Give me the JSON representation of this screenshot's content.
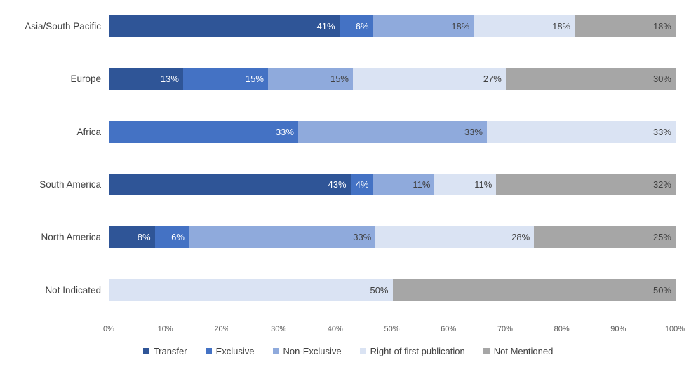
{
  "chart_data": {
    "type": "bar",
    "orientation": "horizontal",
    "stacked": true,
    "title": "",
    "xlabel": "",
    "ylabel": "",
    "xlim": [
      0,
      100
    ],
    "grid": false,
    "legend_position": "bottom",
    "axis_line_color": "#D9D9D9",
    "tick_text_color": "#595959",
    "category_text_color": "#404040",
    "categories": [
      "Asia/South Pacific",
      "Europe",
      "Africa",
      "South America",
      "North America",
      "Not Indicated"
    ],
    "x_ticks": [
      "0%",
      "10%",
      "20%",
      "30%",
      "40%",
      "50%",
      "60%",
      "70%",
      "80%",
      "90%",
      "100%"
    ],
    "series": [
      {
        "name": "Transfer",
        "color": "#2F5597",
        "label_color": "#FFFFFF",
        "values": [
          41,
          13,
          0,
          43,
          8,
          0
        ],
        "labels": [
          "41%",
          "13%",
          "",
          "43%",
          "8%",
          ""
        ]
      },
      {
        "name": "Exclusive",
        "color": "#4472C4",
        "label_color": "#FFFFFF",
        "values": [
          6,
          15,
          33,
          4,
          6,
          0
        ],
        "labels": [
          "6%",
          "15%",
          "33%",
          "4%",
          "6%",
          ""
        ]
      },
      {
        "name": "Non-Exclusive",
        "color": "#8FAADC",
        "label_color": "#404040",
        "values": [
          18,
          15,
          33,
          11,
          33,
          0
        ],
        "labels": [
          "18%",
          "15%",
          "33%",
          "11%",
          "33%",
          ""
        ]
      },
      {
        "name": "Right of first publication",
        "color": "#DAE3F3",
        "label_color": "#404040",
        "values": [
          18,
          27,
          33,
          11,
          28,
          50
        ],
        "labels": [
          "18%",
          "27%",
          "33%",
          "11%",
          "28%",
          "50%"
        ]
      },
      {
        "name": "Not Mentioned",
        "color": "#A6A6A6",
        "label_color": "#404040",
        "values": [
          18,
          30,
          0,
          32,
          25,
          50
        ],
        "labels": [
          "18%",
          "30%",
          "",
          "32%",
          "25%",
          "50%"
        ]
      }
    ]
  }
}
